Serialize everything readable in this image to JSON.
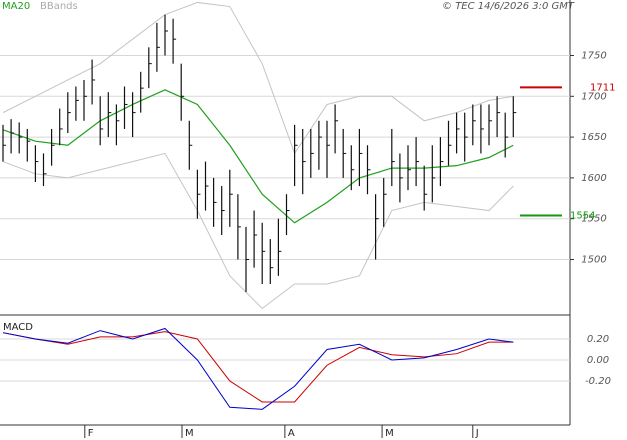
{
  "chart_data": {
    "type": "ohlc",
    "legend": [
      {
        "name": "MA20",
        "color": "#1fa01f"
      },
      {
        "name": "BBands",
        "color": "#aaaaaa"
      }
    ],
    "credit": "© TEC 14/6/2026 3:0 GMT",
    "ylim": [
      1432,
      1818
    ],
    "yticks": [
      1500,
      1550,
      1600,
      1650,
      1700,
      1750
    ],
    "grid": true,
    "bars": {
      "color": "#111111",
      "high": [
        1665,
        1672,
        1668,
        1660,
        1640,
        1630,
        1660,
        1685,
        1705,
        1712,
        1720,
        1745,
        1700,
        1705,
        1690,
        1712,
        1705,
        1730,
        1760,
        1790,
        1800,
        1795,
        1740,
        1670,
        1610,
        1620,
        1600,
        1590,
        1610,
        1580,
        1540,
        1560,
        1545,
        1525,
        1550,
        1580,
        1665,
        1660,
        1660,
        1670,
        1670,
        1690,
        1660,
        1640,
        1660,
        1640,
        1580,
        1600,
        1660,
        1630,
        1640,
        1650,
        1615,
        1640,
        1650,
        1670,
        1680,
        1680,
        1690,
        1690,
        1690,
        1700,
        1680,
        1700
      ],
      "low": [
        1620,
        1630,
        1630,
        1620,
        1595,
        1590,
        1615,
        1640,
        1655,
        1670,
        1670,
        1690,
        1640,
        1650,
        1640,
        1660,
        1650,
        1680,
        1710,
        1730,
        1750,
        1740,
        1670,
        1610,
        1550,
        1560,
        1540,
        1530,
        1540,
        1500,
        1460,
        1490,
        1470,
        1470,
        1480,
        1530,
        1590,
        1580,
        1600,
        1610,
        1600,
        1630,
        1600,
        1585,
        1590,
        1580,
        1500,
        1540,
        1590,
        1570,
        1585,
        1590,
        1560,
        1570,
        1590,
        1615,
        1630,
        1620,
        1640,
        1630,
        1640,
        1650,
        1625,
        1650
      ],
      "close": [
        1640,
        1655,
        1650,
        1645,
        1620,
        1605,
        1640,
        1660,
        1680,
        1695,
        1700,
        1720,
        1660,
        1680,
        1670,
        1690,
        1680,
        1710,
        1740,
        1760,
        1780,
        1770,
        1700,
        1640,
        1580,
        1590,
        1570,
        1560,
        1580,
        1540,
        1500,
        1530,
        1510,
        1490,
        1510,
        1560,
        1640,
        1620,
        1630,
        1650,
        1640,
        1670,
        1630,
        1610,
        1630,
        1610,
        1550,
        1580,
        1620,
        1600,
        1610,
        1620,
        1580,
        1600,
        1620,
        1640,
        1660,
        1650,
        1670,
        1660,
        1670,
        1680,
        1650,
        1680
      ]
    },
    "line_index": [
      0,
      4,
      8,
      12,
      16,
      20,
      24,
      28,
      32,
      36,
      40,
      44,
      48,
      52,
      56,
      60,
      63
    ],
    "ma20": {
      "color": "#1fa01f",
      "values": [
        1659,
        1645,
        1640,
        1670,
        1690,
        1708,
        1690,
        1640,
        1580,
        1545,
        1570,
        1600,
        1612,
        1612,
        1615,
        1625,
        1640
      ]
    },
    "bb_upper": {
      "color": "#c4c4c4",
      "values": [
        1680,
        1700,
        1720,
        1740,
        1770,
        1800,
        1815,
        1810,
        1740,
        1630,
        1690,
        1700,
        1700,
        1670,
        1680,
        1695,
        1700
      ]
    },
    "bb_lower": {
      "color": "#c4c4c4",
      "values": [
        1620,
        1605,
        1600,
        1610,
        1620,
        1630,
        1560,
        1480,
        1440,
        1470,
        1470,
        1480,
        1560,
        1570,
        1565,
        1560,
        1590
      ]
    },
    "levels": [
      {
        "value": 1711,
        "color": "#cc0000"
      },
      {
        "value": 1554,
        "color": "#119911"
      }
    ],
    "month_ticks": [
      {
        "value": 10.1,
        "label": "F"
      },
      {
        "value": 22.1,
        "label": "M"
      },
      {
        "value": 34.8,
        "label": "A"
      },
      {
        "value": 46.8,
        "label": "M"
      },
      {
        "value": 58,
        "label": "J"
      }
    ],
    "macd": {
      "title": "MACD",
      "ylim": [
        -0.667,
        0.4
      ],
      "yticks": [
        {
          "value": 0.2,
          "label": "0.20"
        },
        {
          "value": 0,
          "label": "0.00"
        },
        {
          "value": -0.2,
          "label": "-0.20"
        }
      ],
      "macd_line": {
        "color": "#0000cc",
        "values": [
          0.26,
          0.2,
          0.16,
          0.28,
          0.2,
          0.3,
          0.0,
          -0.45,
          -0.47,
          -0.25,
          0.1,
          0.15,
          0.0,
          0.02,
          0.1,
          0.2,
          0.17
        ]
      },
      "signal_line": {
        "color": "#cc0000",
        "values": [
          0.26,
          0.2,
          0.15,
          0.22,
          0.22,
          0.27,
          0.2,
          -0.2,
          -0.4,
          -0.4,
          -0.05,
          0.12,
          0.05,
          0.03,
          0.06,
          0.17,
          0.17
        ]
      }
    }
  }
}
